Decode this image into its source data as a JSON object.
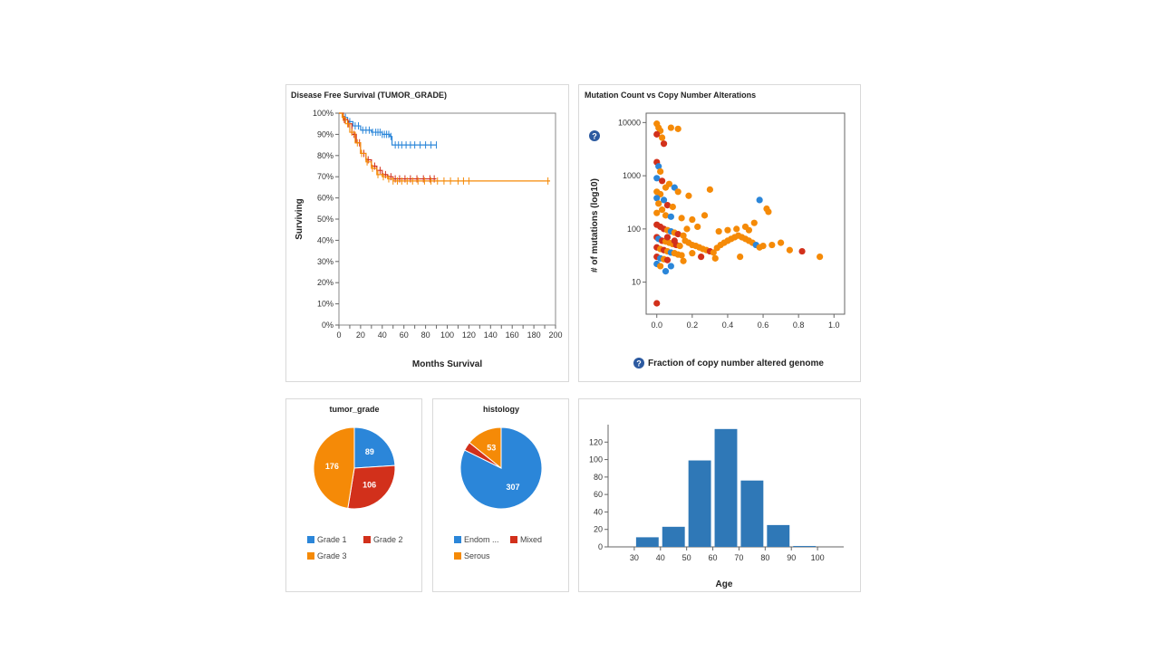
{
  "colors": {
    "blue": "#2b86d9",
    "red": "#d2301b",
    "orange": "#f58a07",
    "bar": "#2f78b7",
    "help_icon": "#2c5aa0"
  },
  "survival": {
    "title": "Disease Free Survival (TUMOR_GRADE)"
  },
  "scatter": {
    "title": "Mutation Count vs Copy Number Alterations"
  },
  "pie_grade": {
    "title": "tumor_grade"
  },
  "pie_hist": {
    "title": "histology"
  },
  "chart_data": [
    {
      "type": "line",
      "title": "Disease Free Survival (TUMOR_GRADE)",
      "xlabel": "Months Survival",
      "ylabel": "Surviving",
      "xlim": [
        0,
        200
      ],
      "ylim": [
        0,
        100
      ],
      "x_ticks": [
        "0",
        "10",
        "20",
        "30",
        "40",
        "50",
        "60",
        "70",
        "80",
        "90",
        "100",
        "110",
        "120",
        "130",
        "140",
        "150",
        "160",
        "170",
        "180",
        "190",
        "200"
      ],
      "y_ticks": [
        "0%",
        "10%",
        "20%",
        "30%",
        "40%",
        "50%",
        "60%",
        "70%",
        "80%",
        "90%",
        "100%"
      ],
      "series": [
        {
          "color": "#2b86d9",
          "points": [
            [
              0,
              100
            ],
            [
              4,
              98
            ],
            [
              8,
              96
            ],
            [
              13,
              94
            ],
            [
              20,
              92
            ],
            [
              30,
              91
            ],
            [
              40,
              90
            ],
            [
              47,
              89
            ],
            [
              49,
              85
            ],
            [
              60,
              85
            ],
            [
              75,
              85
            ],
            [
              90,
              85
            ]
          ],
          "censored": [
            6,
            10,
            15,
            18,
            22,
            25,
            28,
            31,
            34,
            36,
            38,
            40,
            42,
            44,
            46,
            48,
            52,
            55,
            58,
            62,
            66,
            70,
            75,
            80,
            85,
            90
          ]
        },
        {
          "color": "#d2301b",
          "points": [
            [
              0,
              100
            ],
            [
              4,
              97
            ],
            [
              8,
              95
            ],
            [
              12,
              90
            ],
            [
              16,
              86
            ],
            [
              20,
              81
            ],
            [
              25,
              78
            ],
            [
              30,
              75
            ],
            [
              35,
              73
            ],
            [
              40,
              71
            ],
            [
              45,
              70
            ],
            [
              50,
              69
            ],
            [
              60,
              69
            ],
            [
              75,
              69
            ],
            [
              90,
              69
            ]
          ],
          "censored": [
            5,
            9,
            14,
            19,
            23,
            27,
            33,
            38,
            43,
            48,
            52,
            56,
            61,
            66,
            72,
            78,
            84,
            88
          ]
        },
        {
          "color": "#f58a07",
          "points": [
            [
              0,
              100
            ],
            [
              3,
              98
            ],
            [
              6,
              95
            ],
            [
              10,
              91
            ],
            [
              15,
              86
            ],
            [
              20,
              81
            ],
            [
              25,
              77
            ],
            [
              30,
              74
            ],
            [
              35,
              71
            ],
            [
              40,
              70
            ],
            [
              45,
              69
            ],
            [
              50,
              68
            ],
            [
              60,
              68
            ],
            [
              80,
              68
            ],
            [
              110,
              68
            ],
            [
              150,
              68
            ],
            [
              195,
              68
            ]
          ],
          "censored": [
            4,
            8,
            12,
            17,
            21,
            26,
            31,
            36,
            41,
            46,
            50,
            54,
            58,
            63,
            68,
            73,
            79,
            85,
            91,
            97,
            103,
            110,
            115,
            120,
            193
          ]
        }
      ]
    },
    {
      "type": "scatter",
      "title": "Mutation Count vs Copy Number Alterations",
      "xlabel": "Fraction of copy number altered genome",
      "ylabel": "# of mutations (log10)",
      "xlim": [
        -0.06,
        1.06
      ],
      "ylim": [
        2.5,
        15000
      ],
      "log_y": true,
      "x_ticks": [
        "0.0",
        "0.2",
        "0.4",
        "0.6",
        "0.8",
        "1.0"
      ],
      "y_ticks": [
        "10",
        "100",
        "1000",
        "10000"
      ],
      "points": [
        [
          0.0,
          9500,
          "o"
        ],
        [
          0.01,
          8000,
          "o"
        ],
        [
          0.02,
          7000,
          "o"
        ],
        [
          0.0,
          6000,
          "r"
        ],
        [
          0.03,
          5200,
          "o"
        ],
        [
          0.08,
          8000,
          "o"
        ],
        [
          0.12,
          7600,
          "o"
        ],
        [
          0.04,
          4000,
          "r"
        ],
        [
          0.0,
          1800,
          "r"
        ],
        [
          0.01,
          1500,
          "b"
        ],
        [
          0.02,
          1200,
          "o"
        ],
        [
          0.0,
          900,
          "b"
        ],
        [
          0.03,
          800,
          "r"
        ],
        [
          0.05,
          600,
          "o"
        ],
        [
          0.0,
          500,
          "o"
        ],
        [
          0.02,
          450,
          "o"
        ],
        [
          0.07,
          700,
          "o"
        ],
        [
          0.1,
          600,
          "b"
        ],
        [
          0.12,
          500,
          "o"
        ],
        [
          0.18,
          420,
          "o"
        ],
        [
          0.0,
          380,
          "b"
        ],
        [
          0.04,
          350,
          "b"
        ],
        [
          0.01,
          300,
          "o"
        ],
        [
          0.06,
          280,
          "r"
        ],
        [
          0.09,
          260,
          "o"
        ],
        [
          0.03,
          230,
          "o"
        ],
        [
          0.0,
          200,
          "o"
        ],
        [
          0.05,
          180,
          "o"
        ],
        [
          0.08,
          170,
          "b"
        ],
        [
          0.14,
          160,
          "o"
        ],
        [
          0.2,
          150,
          "o"
        ],
        [
          0.27,
          180,
          "o"
        ],
        [
          0.3,
          550,
          "o"
        ],
        [
          0.58,
          350,
          "b"
        ],
        [
          0.62,
          240,
          "o"
        ],
        [
          0.63,
          210,
          "o"
        ],
        [
          0.55,
          130,
          "o"
        ],
        [
          0.5,
          110,
          "o"
        ],
        [
          0.45,
          100,
          "o"
        ],
        [
          0.4,
          95,
          "o"
        ],
        [
          0.0,
          120,
          "r"
        ],
        [
          0.02,
          110,
          "r"
        ],
        [
          0.04,
          100,
          "r"
        ],
        [
          0.06,
          95,
          "o"
        ],
        [
          0.08,
          90,
          "b"
        ],
        [
          0.1,
          85,
          "o"
        ],
        [
          0.12,
          80,
          "r"
        ],
        [
          0.15,
          75,
          "o"
        ],
        [
          0.0,
          70,
          "r"
        ],
        [
          0.01,
          65,
          "b"
        ],
        [
          0.03,
          60,
          "r"
        ],
        [
          0.05,
          58,
          "o"
        ],
        [
          0.07,
          55,
          "o"
        ],
        [
          0.09,
          52,
          "o"
        ],
        [
          0.11,
          50,
          "r"
        ],
        [
          0.13,
          48,
          "o"
        ],
        [
          0.0,
          45,
          "r"
        ],
        [
          0.02,
          42,
          "o"
        ],
        [
          0.04,
          40,
          "r"
        ],
        [
          0.06,
          38,
          "o"
        ],
        [
          0.08,
          36,
          "b"
        ],
        [
          0.1,
          35,
          "o"
        ],
        [
          0.12,
          33,
          "o"
        ],
        [
          0.14,
          32,
          "o"
        ],
        [
          0.0,
          30,
          "r"
        ],
        [
          0.02,
          28,
          "b"
        ],
        [
          0.04,
          27,
          "o"
        ],
        [
          0.06,
          26,
          "r"
        ],
        [
          0.0,
          22,
          "b"
        ],
        [
          0.02,
          20,
          "o"
        ],
        [
          0.05,
          16,
          "b"
        ],
        [
          0.08,
          20,
          "b"
        ],
        [
          0.16,
          60,
          "o"
        ],
        [
          0.18,
          55,
          "o"
        ],
        [
          0.2,
          50,
          "o"
        ],
        [
          0.22,
          48,
          "o"
        ],
        [
          0.24,
          45,
          "o"
        ],
        [
          0.26,
          42,
          "o"
        ],
        [
          0.28,
          40,
          "o"
        ],
        [
          0.3,
          38,
          "r"
        ],
        [
          0.32,
          36,
          "o"
        ],
        [
          0.34,
          44,
          "o"
        ],
        [
          0.36,
          50,
          "o"
        ],
        [
          0.38,
          55,
          "o"
        ],
        [
          0.4,
          60,
          "o"
        ],
        [
          0.42,
          65,
          "o"
        ],
        [
          0.44,
          70,
          "o"
        ],
        [
          0.46,
          75,
          "o"
        ],
        [
          0.48,
          70,
          "o"
        ],
        [
          0.5,
          65,
          "o"
        ],
        [
          0.52,
          60,
          "o"
        ],
        [
          0.54,
          55,
          "o"
        ],
        [
          0.56,
          50,
          "b"
        ],
        [
          0.58,
          45,
          "o"
        ],
        [
          0.6,
          48,
          "o"
        ],
        [
          0.65,
          50,
          "o"
        ],
        [
          0.7,
          55,
          "o"
        ],
        [
          0.75,
          40,
          "o"
        ],
        [
          0.82,
          38,
          "r"
        ],
        [
          0.92,
          30,
          "o"
        ],
        [
          0.2,
          35,
          "o"
        ],
        [
          0.25,
          30,
          "r"
        ],
        [
          0.33,
          28,
          "o"
        ],
        [
          0.47,
          30,
          "o"
        ],
        [
          0.17,
          100,
          "o"
        ],
        [
          0.23,
          110,
          "o"
        ],
        [
          0.35,
          90,
          "o"
        ],
        [
          0.52,
          95,
          "o"
        ],
        [
          0.0,
          4,
          "r"
        ],
        [
          0.15,
          25,
          "o"
        ],
        [
          0.1,
          60,
          "r"
        ],
        [
          0.06,
          70,
          "r"
        ]
      ]
    },
    {
      "type": "pie",
      "title": "tumor_grade",
      "labels": [
        "Grade 1",
        "Grade 2",
        "Grade 3"
      ],
      "values": [
        89,
        106,
        176
      ],
      "colors": [
        "#2b86d9",
        "#d2301b",
        "#f58a07"
      ]
    },
    {
      "type": "pie",
      "title": "histology",
      "labels": [
        "Endom ...",
        "Mixed",
        "Serous"
      ],
      "values": [
        307,
        13,
        53
      ],
      "colors": [
        "#2b86d9",
        "#d2301b",
        "#f58a07"
      ]
    },
    {
      "type": "bar",
      "title": "",
      "xlabel": "Age",
      "ylabel": "",
      "xlim": [
        20,
        110
      ],
      "ylim": [
        0,
        140
      ],
      "x_ticks": [
        "30",
        "40",
        "50",
        "60",
        "70",
        "80",
        "90",
        "100"
      ],
      "y_ticks": [
        "0",
        "20",
        "40",
        "60",
        "80",
        "100",
        "120"
      ],
      "bins": [
        [
          30,
          40
        ],
        [
          40,
          50
        ],
        [
          50,
          60
        ],
        [
          60,
          70
        ],
        [
          70,
          80
        ],
        [
          80,
          90
        ],
        [
          90,
          100
        ]
      ],
      "values": [
        11,
        23,
        99,
        135,
        76,
        25,
        1
      ]
    }
  ]
}
